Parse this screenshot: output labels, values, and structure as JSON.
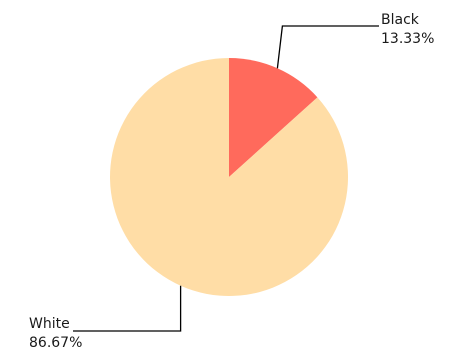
{
  "chart_data": {
    "type": "pie",
    "title": "",
    "start_angle_deg": 0,
    "direction": "clockwise",
    "slices": [
      {
        "name": "Black",
        "value": 13.33,
        "percent_label": "13.33%",
        "color": "#ff6a5c"
      },
      {
        "name": "White",
        "value": 86.67,
        "percent_label": "86.67%",
        "color": "#ffdda6"
      }
    ],
    "leader_line_color": "#000000"
  }
}
